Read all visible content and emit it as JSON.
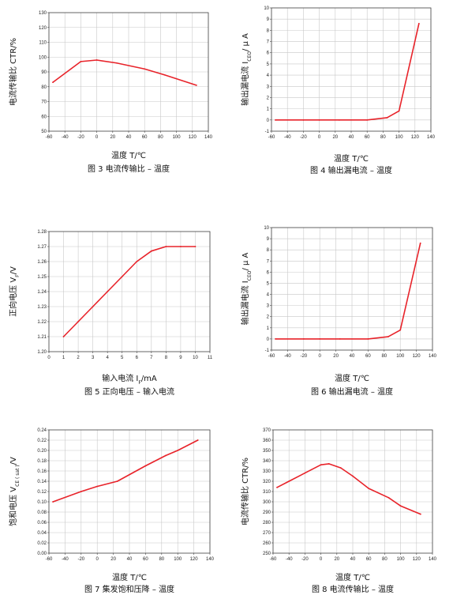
{
  "colors": {
    "series": "#e8232a",
    "grid": "#c8c8c8",
    "frame": "#444444"
  },
  "chart_data": [
    {
      "type": "line",
      "xlabel": "温度 T/℃",
      "ylabel": "电流传输比 CTR/%",
      "caption": "图 3 电流传输比 – 温度",
      "xlim": [
        -60,
        140
      ],
      "xticks": [
        -60,
        -40,
        -20,
        0,
        20,
        40,
        60,
        80,
        100,
        120,
        140
      ],
      "ylim": [
        50,
        130
      ],
      "yticks": [
        50,
        60,
        70,
        80,
        90,
        100,
        110,
        120,
        130
      ],
      "grid": true,
      "x": [
        -55,
        -20,
        0,
        25,
        60,
        85,
        125
      ],
      "y": [
        83,
        97,
        98,
        96,
        92,
        88,
        81
      ]
    },
    {
      "type": "line",
      "xlabel": "温度 T/℃",
      "ylabel_parts": [
        "输出漏电流 I",
        "CEO",
        "/ μ A"
      ],
      "caption": "图 4 输出漏电流 – 温度",
      "xlim": [
        -60,
        140
      ],
      "xticks": [
        -60,
        -40,
        -20,
        0,
        20,
        40,
        60,
        80,
        100,
        120,
        140
      ],
      "ylim": [
        -1,
        10
      ],
      "yticks": [
        -1,
        0,
        1,
        2,
        3,
        4,
        5,
        6,
        7,
        8,
        9,
        10
      ],
      "grid": true,
      "x": [
        -55,
        -20,
        0,
        25,
        60,
        85,
        100,
        125
      ],
      "y": [
        0,
        0,
        0,
        0,
        0,
        0.2,
        0.8,
        8.6
      ]
    },
    {
      "type": "line",
      "xlabel_parts": [
        "输入电流 I",
        "F",
        "/mA"
      ],
      "ylabel_parts": [
        "正向电压 V",
        "F",
        "/V"
      ],
      "caption": "图 5 正向电压 – 输入电流",
      "xlim": [
        0,
        11
      ],
      "xticks": [
        0,
        1,
        2,
        3,
        4,
        5,
        6,
        7,
        8,
        9,
        10,
        11
      ],
      "ylim": [
        1.2,
        1.28
      ],
      "yticks": [
        1.2,
        1.21,
        1.22,
        1.23,
        1.24,
        1.25,
        1.26,
        1.27,
        1.28
      ],
      "ytick_decimals": 2,
      "grid": true,
      "x": [
        1,
        2,
        3,
        4,
        5,
        6,
        7,
        8,
        9,
        10
      ],
      "y": [
        1.21,
        1.22,
        1.23,
        1.24,
        1.25,
        1.26,
        1.267,
        1.27,
        1.27,
        1.27
      ]
    },
    {
      "type": "line",
      "xlabel": "温度 T/℃",
      "ylabel_parts": [
        "输出漏电流 I",
        "CEO",
        "/ μ A"
      ],
      "caption": "图 6 输出漏电流 – 温度",
      "xlim": [
        -60,
        140
      ],
      "xticks": [
        -60,
        -40,
        -20,
        0,
        20,
        40,
        60,
        80,
        100,
        120,
        140
      ],
      "ylim": [
        -1,
        10
      ],
      "yticks": [
        -1,
        0,
        1,
        2,
        3,
        4,
        5,
        6,
        7,
        8,
        9,
        10
      ],
      "grid": true,
      "x": [
        -55,
        -20,
        0,
        25,
        60,
        85,
        100,
        125
      ],
      "y": [
        0,
        0,
        0,
        0,
        0,
        0.2,
        0.8,
        8.6
      ]
    },
    {
      "type": "line",
      "xlabel": "温度 T/℃",
      "ylabel_parts": [
        "饱和电压 V",
        "CE ( sat )",
        "/V"
      ],
      "caption": "图 7 集发饱和压降 – 温度",
      "xlim": [
        -60,
        140
      ],
      "xticks": [
        -60,
        -40,
        -20,
        0,
        20,
        40,
        60,
        80,
        100,
        120,
        140
      ],
      "ylim": [
        0,
        0.24
      ],
      "yticks": [
        0,
        0.02,
        0.04,
        0.06,
        0.08,
        0.1,
        0.12,
        0.14,
        0.16,
        0.18,
        0.2,
        0.22,
        0.24
      ],
      "ytick_decimals": 2,
      "grid": true,
      "x": [
        -55,
        -20,
        0,
        25,
        60,
        85,
        100,
        125
      ],
      "y": [
        0.1,
        0.12,
        0.13,
        0.14,
        0.17,
        0.19,
        0.2,
        0.22
      ]
    },
    {
      "type": "line",
      "xlabel": "温度 T/℃",
      "ylabel": "电流传输比 CTR/%",
      "caption": "图 8 电流传输比 – 温度",
      "xlim": [
        -60,
        140
      ],
      "xticks": [
        -60,
        -40,
        -20,
        0,
        20,
        40,
        60,
        80,
        100,
        120,
        140
      ],
      "ylim": [
        250,
        370
      ],
      "yticks": [
        250,
        260,
        270,
        280,
        290,
        300,
        310,
        320,
        330,
        340,
        350,
        360,
        370
      ],
      "grid": true,
      "x": [
        -55,
        -40,
        -20,
        0,
        10,
        25,
        40,
        60,
        85,
        100,
        125
      ],
      "y": [
        314,
        320,
        328,
        336,
        337,
        333,
        325,
        313,
        304,
        296,
        288
      ]
    }
  ]
}
